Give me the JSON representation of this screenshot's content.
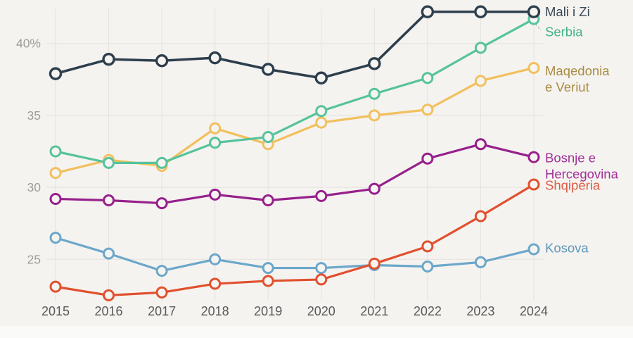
{
  "page": {
    "background_color": "#f5f3f0",
    "footer_strip_color": "#fafaf8"
  },
  "chart_data": {
    "type": "line",
    "title": "",
    "xlabel": "",
    "ylabel": "",
    "x": [
      2015,
      2016,
      2017,
      2018,
      2019,
      2020,
      2021,
      2022,
      2023,
      2024
    ],
    "x_tick_labels": [
      "2015",
      "2016",
      "2017",
      "2018",
      "2019",
      "2020",
      "2021",
      "2022",
      "2023",
      "2024"
    ],
    "yticks": [
      {
        "value": 40,
        "label": "40%"
      },
      {
        "value": 35,
        "label": "35"
      },
      {
        "value": 30,
        "label": "30"
      },
      {
        "value": 25,
        "label": "25"
      }
    ],
    "ylim": [
      22,
      42.5
    ],
    "grid": true,
    "legend_position": "right",
    "axis_colors": {
      "y_tick": "#9d9c99",
      "x_tick": "#59595b",
      "grid": "#e5e2dd"
    },
    "series": [
      {
        "id": "mali-i-zi",
        "name": "Mali i Zi",
        "label_lines": [
          "Mali i Zi"
        ],
        "color": "#2d3e4d",
        "label_color": "#3a4a56",
        "values": [
          37.9,
          38.9,
          38.8,
          39.0,
          38.2,
          37.6,
          38.6,
          42.2,
          42.2,
          42.2
        ]
      },
      {
        "id": "serbia",
        "name": "Serbia",
        "label_lines": [
          "Serbia"
        ],
        "color": "#56c39c",
        "label_color": "#43b189",
        "callout": true,
        "values": [
          32.5,
          31.7,
          31.7,
          33.1,
          33.5,
          35.3,
          36.5,
          37.6,
          39.7,
          41.7
        ]
      },
      {
        "id": "maqedonia-e-veriut",
        "name": "Maqedonia e Veriut",
        "label_lines": [
          "Maqedonia",
          "e Veriut"
        ],
        "color": "#f1c05e",
        "label_color": "#a88c42",
        "values": [
          31.0,
          31.9,
          31.5,
          34.1,
          33.0,
          34.5,
          35.0,
          35.4,
          37.4,
          38.3
        ]
      },
      {
        "id": "bosnje-e-hercegovina",
        "name": "Bosnje e Hercegovina",
        "label_lines": [
          "Bosnje e",
          "Hercegovina"
        ],
        "color": "#96208c",
        "label_color": "#a23099",
        "values": [
          29.2,
          29.1,
          28.9,
          29.5,
          29.1,
          29.4,
          29.9,
          32.0,
          33.0,
          32.1
        ]
      },
      {
        "id": "shqiperia",
        "name": "Shqipëria",
        "label_lines": [
          "Shqipëria"
        ],
        "color": "#e1502e",
        "label_color": "#da5c44",
        "values": [
          23.1,
          22.5,
          22.7,
          23.3,
          23.5,
          23.6,
          24.7,
          25.9,
          28.0,
          30.2
        ]
      },
      {
        "id": "kosova",
        "name": "Kosova",
        "label_lines": [
          "Kosova"
        ],
        "color": "#6ca7ca",
        "label_color": "#5f97ba",
        "values": [
          26.5,
          25.4,
          24.2,
          25.0,
          24.4,
          24.4,
          24.6,
          24.5,
          24.8,
          25.7
        ]
      }
    ]
  }
}
